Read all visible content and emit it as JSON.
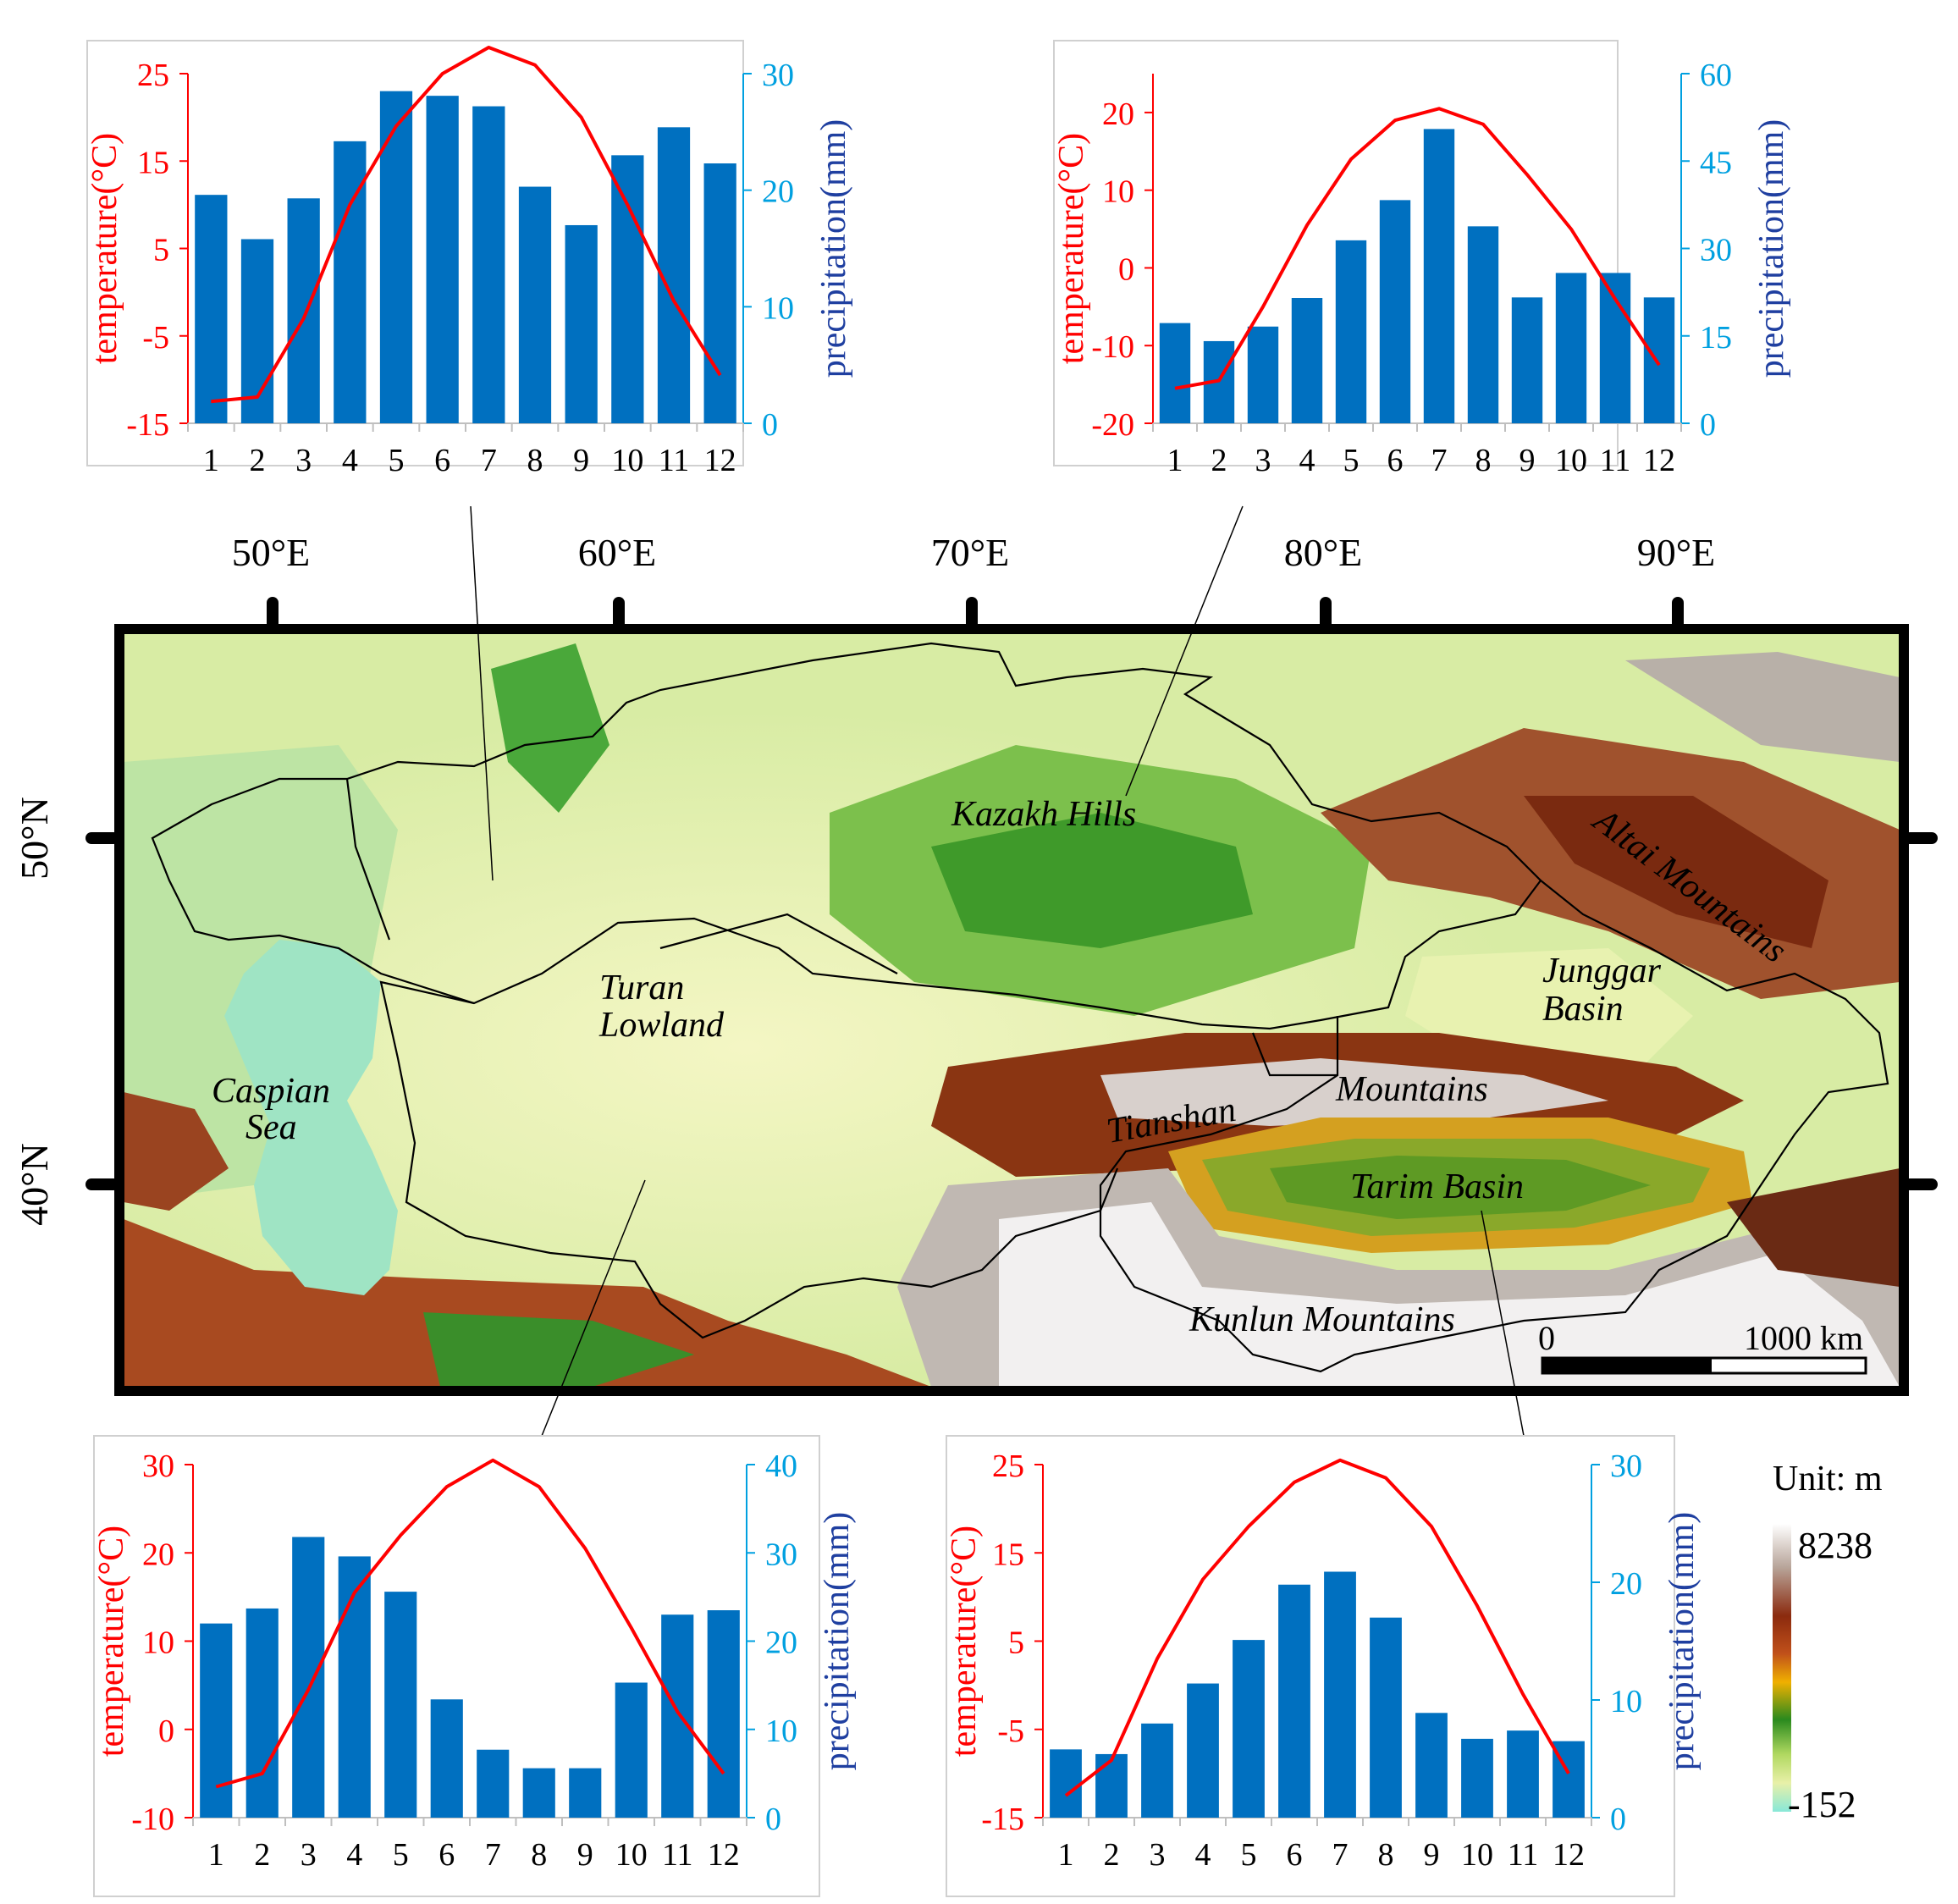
{
  "map": {
    "lon_labels": [
      "50°E",
      "60°E",
      "70°E",
      "80°E",
      "90°E"
    ],
    "lat_labels": [
      "50°N",
      "40°N"
    ],
    "place_labels": {
      "kazakh_hills": "Kazakh Hills",
      "altai": "Altai Mountains",
      "junggar_1": "Junggar",
      "junggar_2": "Basin",
      "turan_1": "Turan",
      "turan_2": "Lowland",
      "caspian_1": "Caspian",
      "caspian_2": "Sea",
      "tianshan": "Tianshan",
      "mountains": "Mountains",
      "tarim": "Tarim Basin",
      "kunlun": "Kunlun Mountains"
    },
    "scale_bar": {
      "start": "0",
      "end": "1000 km"
    },
    "legend": {
      "title": "Unit: m",
      "max": "8238",
      "min": "-152"
    },
    "colors": {
      "temperature": "#ff0000",
      "precipitation_bar": "#0070c0",
      "precip_axis": "#00a0e0"
    }
  },
  "chart_data": [
    {
      "type": "bar",
      "position_label": "top-left",
      "categories": [
        "1",
        "2",
        "3",
        "4",
        "5",
        "6",
        "7",
        "8",
        "9",
        "10",
        "11",
        "12"
      ],
      "series": [
        {
          "name": "",
          "type": "bar",
          "axis": "right",
          "values": [
            19.6,
            15.8,
            19.3,
            24.2,
            28.5,
            28.1,
            27.2,
            20.3,
            17.0,
            23.0,
            25.4,
            22.3
          ]
        },
        {
          "name": "",
          "type": "line",
          "axis": "left",
          "values": [
            -12.5,
            -12.0,
            -3.0,
            10.0,
            19.0,
            25.0,
            28.0,
            26.0,
            20.0,
            10.0,
            -1.0,
            -9.5
          ]
        }
      ],
      "ylabel_left": "temperature(°C)",
      "ylabel_right": "precipitation(mm)",
      "ylim_left": [
        -15,
        25
      ],
      "yticks_left": [
        "25",
        "15",
        "5",
        "-5",
        "-15"
      ],
      "ylim_right": [
        0,
        30
      ],
      "yticks_right": [
        "30",
        "20",
        "10",
        "0"
      ]
    },
    {
      "type": "bar",
      "position_label": "top-right",
      "categories": [
        "1",
        "2",
        "3",
        "4",
        "5",
        "6",
        "7",
        "8",
        "9",
        "10",
        "11",
        "12"
      ],
      "series": [
        {
          "name": "",
          "type": "bar",
          "axis": "right",
          "values": [
            17.2,
            14.1,
            16.6,
            21.5,
            31.4,
            38.3,
            50.5,
            33.8,
            21.6,
            25.8,
            25.8,
            21.6
          ]
        },
        {
          "name": "",
          "type": "line",
          "axis": "left",
          "values": [
            -15.5,
            -14.5,
            -5.0,
            5.5,
            14.0,
            19.0,
            20.5,
            18.5,
            12.0,
            5.0,
            -4.0,
            -12.5
          ]
        }
      ],
      "ylabel_left": "temperature(°C)",
      "ylabel_right": "precipitation(mm)",
      "ylim_left": [
        -20,
        25
      ],
      "yticks_left": [
        "20",
        "10",
        "0",
        "-10",
        "-20"
      ],
      "ylim_right": [
        0,
        60
      ],
      "yticks_right": [
        "60",
        "45",
        "30",
        "15",
        "0"
      ]
    },
    {
      "type": "bar",
      "position_label": "bottom-left",
      "categories": [
        "1",
        "2",
        "3",
        "4",
        "5",
        "6",
        "7",
        "8",
        "9",
        "10",
        "11",
        "12"
      ],
      "series": [
        {
          "name": "",
          "type": "bar",
          "axis": "right",
          "values": [
            22.0,
            23.7,
            31.8,
            29.6,
            25.6,
            13.4,
            7.7,
            5.6,
            5.6,
            15.3,
            23.0,
            23.5
          ]
        },
        {
          "name": "",
          "type": "line",
          "axis": "left",
          "values": [
            -6.5,
            -5.0,
            4.5,
            15.5,
            22.0,
            27.5,
            30.5,
            27.5,
            20.5,
            11.5,
            2.0,
            -5.0
          ]
        }
      ],
      "ylabel_left": "temperature(°C)",
      "ylabel_right": "precipitation(mm)",
      "ylim_left": [
        -10,
        30
      ],
      "yticks_left": [
        "30",
        "20",
        "10",
        "0",
        "-10"
      ],
      "ylim_right": [
        0,
        40
      ],
      "yticks_right": [
        "40",
        "30",
        "20",
        "10",
        "0"
      ]
    },
    {
      "type": "bar",
      "position_label": "bottom-right",
      "categories": [
        "1",
        "2",
        "3",
        "4",
        "5",
        "6",
        "7",
        "8",
        "9",
        "10",
        "11",
        "12"
      ],
      "series": [
        {
          "name": "",
          "type": "bar",
          "axis": "right",
          "values": [
            5.8,
            5.4,
            8.0,
            11.4,
            15.1,
            19.8,
            20.9,
            17.0,
            8.9,
            6.7,
            7.4,
            6.5
          ]
        },
        {
          "name": "",
          "type": "line",
          "axis": "left",
          "values": [
            -12.5,
            -8.5,
            3.0,
            12.0,
            18.0,
            23.0,
            25.5,
            23.5,
            18.0,
            9.0,
            -1.0,
            -10.0
          ]
        }
      ],
      "ylabel_left": "temperature(°C)",
      "ylabel_right": "precipitation(mm)",
      "ylim_left": [
        -15,
        25
      ],
      "yticks_left": [
        "25",
        "15",
        "5",
        "-5",
        "-15"
      ],
      "ylim_right": [
        0,
        30
      ],
      "yticks_right": [
        "30",
        "20",
        "10",
        "0"
      ]
    }
  ]
}
